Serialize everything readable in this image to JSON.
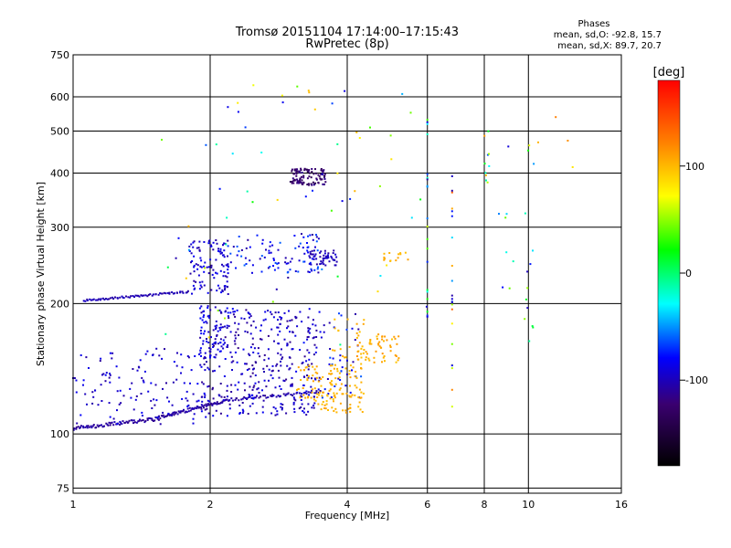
{
  "chart_data": {
    "type": "scatter",
    "title": "Tromsø 20151104 17:14:00–17:15:43",
    "subtitle": "RwPretec (8p)",
    "xlabel": "Frequency [MHz]",
    "ylabel": "Stationary phase Virtual Height [km]",
    "x_scale": "log",
    "y_scale": "log",
    "xlim": [
      1,
      16
    ],
    "ylim": [
      73,
      750
    ],
    "x_ticks": [
      1,
      2,
      4,
      6,
      8,
      10,
      16
    ],
    "x_tick_labels": [
      "1",
      "2",
      "4",
      "6",
      "8",
      "10",
      "16"
    ],
    "y_ticks": [
      75,
      100,
      200,
      300,
      400,
      500,
      600,
      750
    ],
    "y_tick_labels": [
      "75",
      "100",
      "200",
      "300",
      "400",
      "500",
      "600",
      "750"
    ],
    "grid": true,
    "phases": {
      "title": "Phases",
      "line_o": "mean, sd,O: -92.8, 15.7",
      "line_x": "mean, sd,X: 89.7, 20.7"
    },
    "colorbar": {
      "label": "[deg]",
      "range": [
        -180,
        180
      ],
      "ticks": [
        -100,
        0,
        100
      ],
      "tick_labels": [
        "-100",
        "0",
        "100"
      ]
    },
    "series": [
      {
        "clusters": [
          {
            "f": [
              1.0,
              1.5
            ],
            "h": [
              103,
              108
            ],
            "phase": [
              -115,
              -100
            ],
            "n": 70,
            "trace": true
          },
          {
            "f": [
              1.5,
              2.2
            ],
            "h": [
              108,
              120
            ],
            "phase": [
              -115,
              -100
            ],
            "n": 80,
            "trace": true
          },
          {
            "f": [
              2.2,
              3.5
            ],
            "h": [
              120,
              125
            ],
            "phase": [
              -115,
              -95
            ],
            "n": 50,
            "trace": true
          },
          {
            "f": [
              1.0,
              2.0
            ],
            "h": [
              105,
              160
            ],
            "phase": [
              -110,
              -80
            ],
            "n": 130
          },
          {
            "f": [
              1.9,
              3.5
            ],
            "h": [
              110,
              195
            ],
            "phase": [
              -115,
              -80
            ],
            "n": 380
          },
          {
            "f": [
              1.9,
              2.2
            ],
            "h": [
              150,
              200
            ],
            "phase": [
              -110,
              -75
            ],
            "n": 60
          },
          {
            "f": [
              3.5,
              4.3
            ],
            "h": [
              120,
              190
            ],
            "phase": [
              -110,
              -60
            ],
            "n": 40
          },
          {
            "f": [
              1.05,
              1.8
            ],
            "h": [
              203,
              213
            ],
            "phase": [
              -110,
              -95
            ],
            "n": 70,
            "trace": true
          },
          {
            "f": [
              1.8,
              2.2
            ],
            "h": [
              210,
              280
            ],
            "phase": [
              -110,
              -80
            ],
            "n": 110
          },
          {
            "f": [
              2.2,
              3.5
            ],
            "h": [
              235,
              290
            ],
            "phase": [
              -110,
              -60
            ],
            "n": 90
          },
          {
            "f": [
              3.3,
              3.8
            ],
            "h": [
              245,
              265
            ],
            "phase": [
              -110,
              -90
            ],
            "n": 50
          },
          {
            "f": [
              3.0,
              3.6
            ],
            "h": [
              375,
              410
            ],
            "phase": [
              -140,
              -110
            ],
            "n": 100
          },
          {
            "f": [
              1.5,
              6.0
            ],
            "h": [
              150,
              640
            ],
            "phase": [
              -110,
              110
            ],
            "n": 70
          }
        ]
      },
      {
        "clusters": [
          {
            "f": [
              3.1,
              4.3
            ],
            "h": [
              120,
              145
            ],
            "phase": [
              95,
              110
            ],
            "n": 90
          },
          {
            "f": [
              3.4,
              4.4
            ],
            "h": [
              112,
              125
            ],
            "phase": [
              95,
              110
            ],
            "n": 45
          },
          {
            "f": [
              4.2,
              5.2
            ],
            "h": [
              145,
              170
            ],
            "phase": [
              95,
              115
            ],
            "n": 60
          },
          {
            "f": [
              3.7,
              4.5
            ],
            "h": [
              150,
              185
            ],
            "phase": [
              95,
              110
            ],
            "n": 20
          },
          {
            "f": [
              4.8,
              5.6
            ],
            "h": [
              250,
              262
            ],
            "phase": [
              95,
              110
            ],
            "n": 15
          }
        ]
      },
      {
        "clusters": [
          {
            "f": [
              6.0,
              6.0
            ],
            "h": [
              160,
              560
            ],
            "phase": [
              -110,
              60
            ],
            "n": 20
          },
          {
            "f": [
              6.8,
              6.8
            ],
            "h": [
              115,
              420
            ],
            "phase": [
              -110,
              140
            ],
            "n": 22
          },
          {
            "f": [
              8.0,
              8.2
            ],
            "h": [
              380,
              500
            ],
            "phase": [
              -100,
              120
            ],
            "n": 10
          },
          {
            "f": [
              8.6,
              9.3
            ],
            "h": [
              170,
              600
            ],
            "phase": [
              -100,
              120
            ],
            "n": 8
          },
          {
            "f": [
              9.8,
              10.3
            ],
            "h": [
              150,
              580
            ],
            "phase": [
              -100,
              110
            ],
            "n": 14
          },
          {
            "f": [
              10.5,
              13.0
            ],
            "h": [
              370,
              620
            ],
            "phase": [
              80,
              130
            ],
            "n": 4
          }
        ]
      }
    ]
  }
}
